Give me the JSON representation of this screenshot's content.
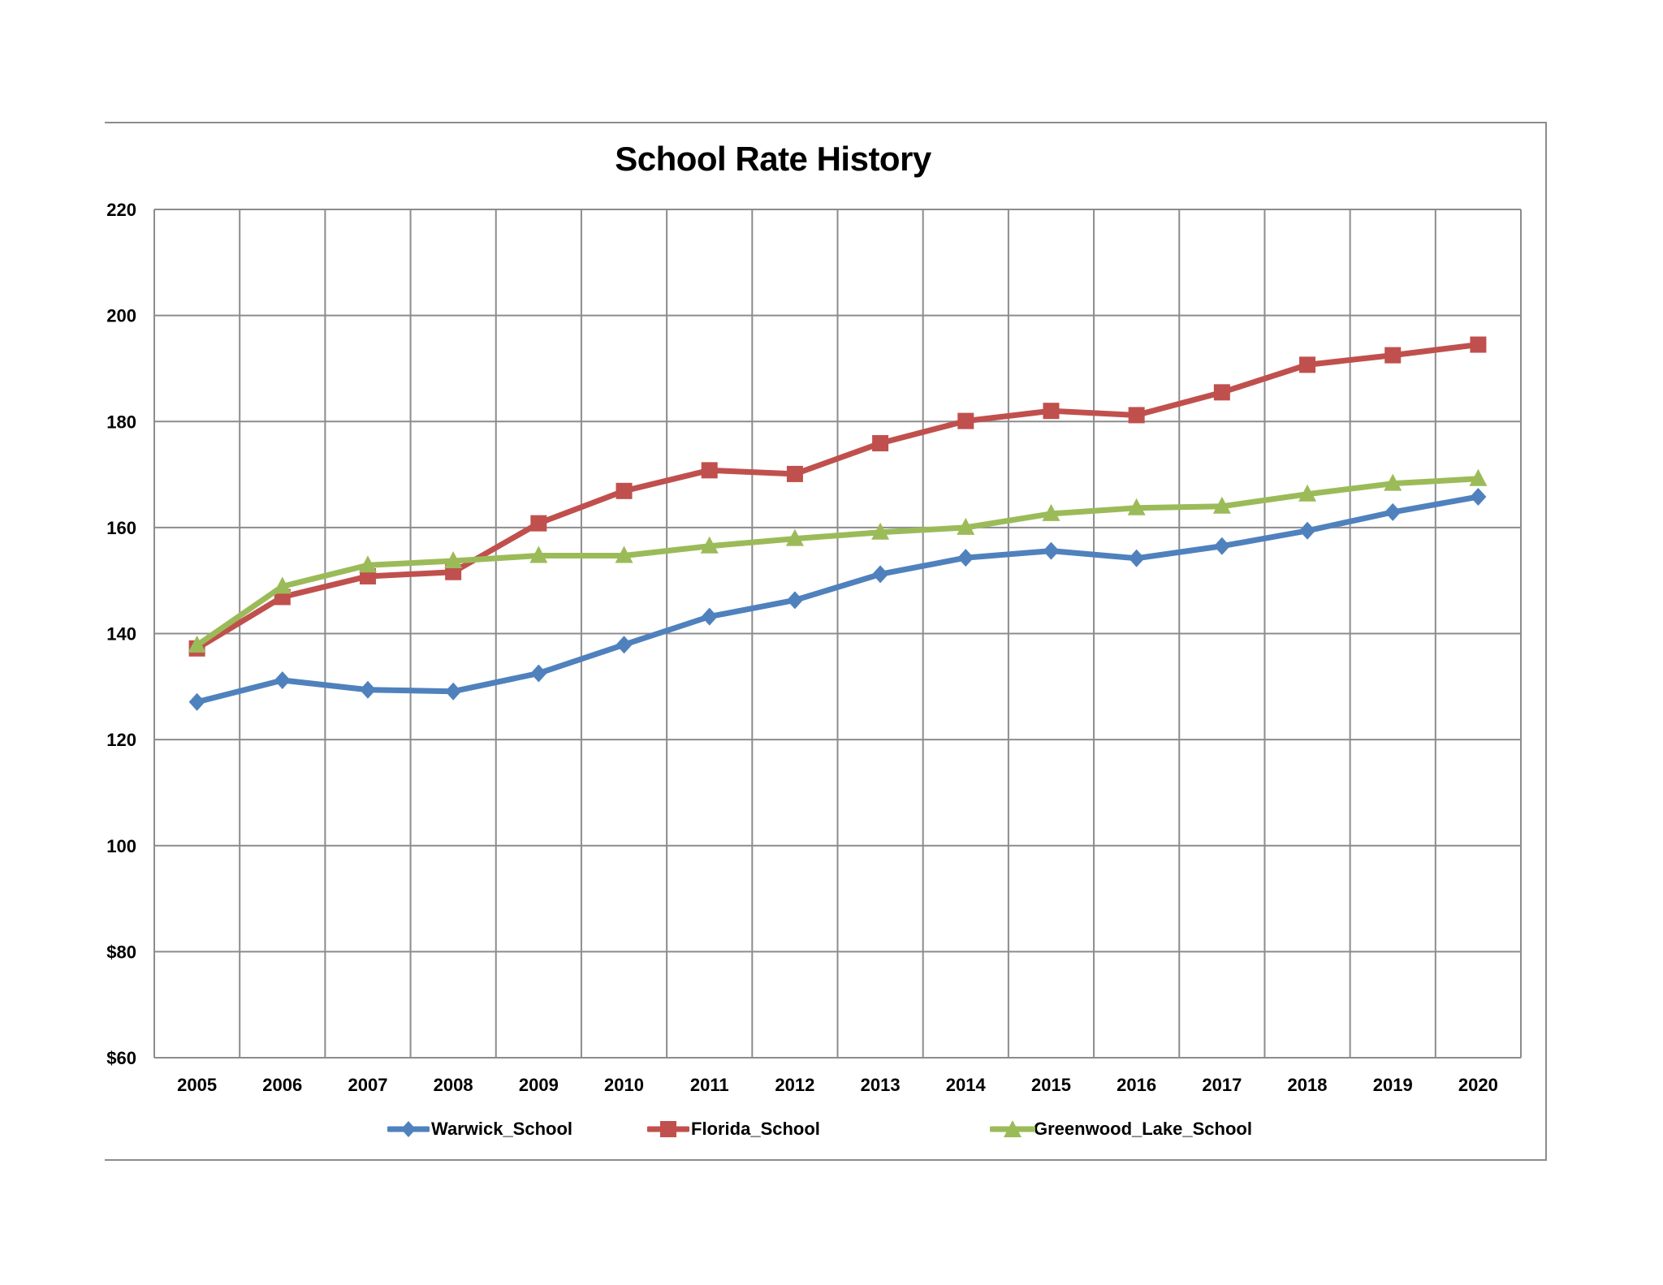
{
  "chart_data": {
    "type": "line",
    "title": "School Rate History",
    "xlabel": "",
    "ylabel": "",
    "x": [
      "2005",
      "2006",
      "2007",
      "2008",
      "2009",
      "2010",
      "2011",
      "2012",
      "2013",
      "2014",
      "2015",
      "2016",
      "2017",
      "2018",
      "2019",
      "2020"
    ],
    "ylim": [
      60,
      220
    ],
    "ytick_labels": [
      "$60",
      "$80",
      "100",
      "120",
      "140",
      "160",
      "180",
      "200",
      "220"
    ],
    "ytick_values": [
      60,
      80,
      100,
      120,
      140,
      160,
      180,
      200,
      220
    ],
    "grid": true,
    "legend_position": "bottom",
    "series": [
      {
        "name": "Warwick_School",
        "color": "#4F81BD",
        "marker": "diamond",
        "values": [
          127.1,
          131.2,
          129.4,
          129.1,
          132.5,
          137.9,
          143.2,
          146.3,
          151.2,
          154.3,
          155.6,
          154.2,
          156.5,
          159.4,
          162.9,
          165.8
        ]
      },
      {
        "name": "Florida_School",
        "color": "#C0504D",
        "marker": "square",
        "values": [
          137.2,
          146.9,
          150.8,
          151.6,
          160.8,
          166.9,
          170.8,
          170.1,
          175.9,
          180.1,
          182.0,
          181.2,
          185.5,
          190.7,
          192.5,
          194.5
        ]
      },
      {
        "name": "Greenwood_Lake_School",
        "color": "#9BBB59",
        "marker": "triangle",
        "values": [
          137.8,
          148.9,
          152.9,
          153.7,
          154.7,
          154.7,
          156.5,
          157.9,
          159.1,
          160.0,
          162.6,
          163.7,
          164.0,
          166.3,
          168.3,
          169.2
        ]
      }
    ]
  },
  "legend": {
    "items": [
      {
        "label": "Warwick_School"
      },
      {
        "label": "Florida_School"
      },
      {
        "label": "Greenwood_Lake_School"
      }
    ]
  }
}
